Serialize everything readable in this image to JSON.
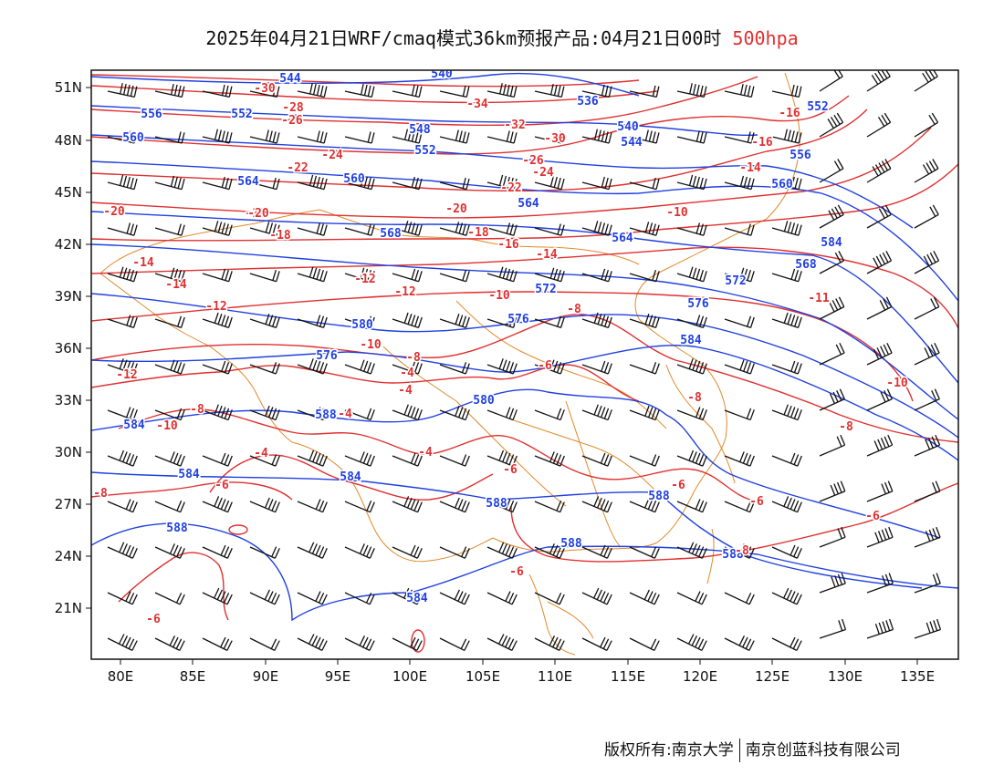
{
  "title": {
    "main": "2025年04月21日WRF/cmaq模式36km预报产品:04月21日00时",
    "level": "500hpa"
  },
  "copyright": {
    "left": "版权所有:南京大学",
    "right": "南京创蓝科技有限公司"
  },
  "axes": {
    "lat_labels": [
      "51N",
      "48N",
      "45N",
      "42N",
      "39N",
      "36N",
      "33N",
      "30N",
      "27N",
      "24N",
      "21N"
    ],
    "lon_labels": [
      "80E",
      "85E",
      "90E",
      "95E",
      "100E",
      "105E",
      "110E",
      "115E",
      "120E",
      "125E",
      "130E",
      "135E"
    ]
  },
  "colors": {
    "height": "#2040e0",
    "temperature": "#e03030",
    "boundary": "#e08a2a",
    "wind": "#111111"
  },
  "height_labels": [
    "544",
    "540",
    "536",
    "556",
    "552",
    "548",
    "560",
    "552",
    "544",
    "540",
    "564",
    "560",
    "556",
    "568",
    "552",
    "564",
    "560",
    "564",
    "572",
    "568",
    "572",
    "576",
    "580",
    "576",
    "576",
    "584",
    "580",
    "588",
    "584",
    "584",
    "584",
    "588",
    "588",
    "588",
    "584",
    "588",
    "588",
    "584"
  ],
  "temperature_labels": [
    "-30",
    "-34",
    "-28",
    "-26",
    "-32",
    "-30",
    "-24",
    "-26",
    "-24",
    "-22",
    "-22",
    "-20",
    "-18",
    "-20",
    "-20",
    "-18",
    "-16",
    "-18",
    "-16",
    "-14",
    "-14",
    "-16",
    "-14",
    "-10",
    "-14",
    "-12",
    "-12",
    "-10",
    "-12",
    "-11",
    "-8",
    "-10",
    "-6",
    "-12",
    "-8",
    "-8",
    "-4",
    "-8",
    "-4",
    "-4",
    "-4",
    "-10",
    "-4",
    "-4",
    "-6",
    "-6",
    "-8",
    "-6",
    "-8",
    "-8",
    "-10",
    "-6",
    "-6",
    "-6",
    "-6"
  ]
}
